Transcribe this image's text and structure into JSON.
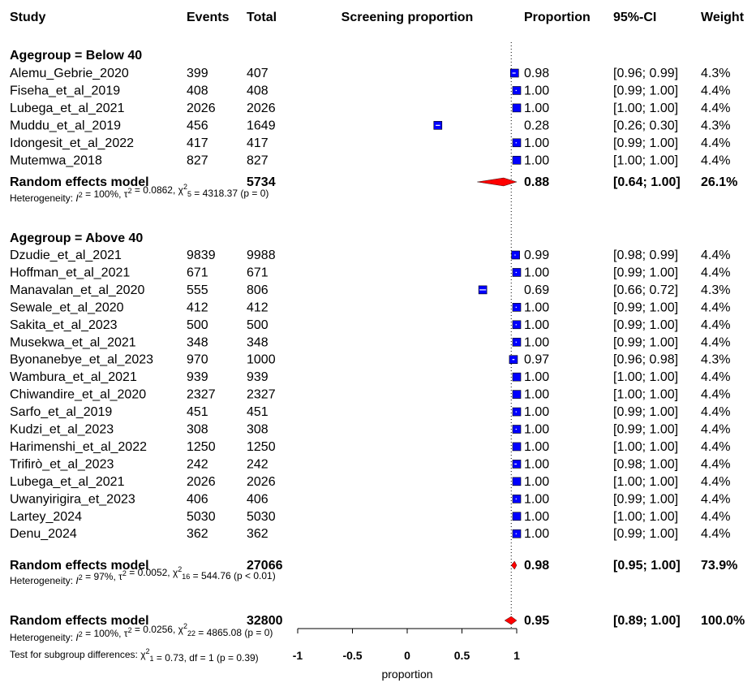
{
  "chart_data": {
    "type": "forest",
    "headers": {
      "study": "Study",
      "events": "Events",
      "total": "Total",
      "plot": "Screening proportion",
      "proportion": "Proportion",
      "ci": "95%-CI",
      "weight": "Weight"
    },
    "groups": [
      {
        "title": "Agegroup = Below 40",
        "studies": [
          {
            "name": "Alemu_Gebrie_2020",
            "events": "399",
            "total": "407",
            "prop": "0.98",
            "ci": "[0.96; 0.99]",
            "weight": "4.3%",
            "est": 0.98,
            "lo": 0.96,
            "hi": 0.99
          },
          {
            "name": "Fiseha_et_al_2019",
            "events": "408",
            "total": "408",
            "prop": "1.00",
            "ci": "[0.99; 1.00]",
            "weight": "4.4%",
            "est": 1.0,
            "lo": 0.99,
            "hi": 1.0
          },
          {
            "name": "Lubega_et_al_2021",
            "events": "2026",
            "total": "2026",
            "prop": "1.00",
            "ci": "[1.00; 1.00]",
            "weight": "4.4%",
            "est": 1.0,
            "lo": 1.0,
            "hi": 1.0
          },
          {
            "name": "Muddu_et_al_2019",
            "events": "456",
            "total": "1649",
            "prop": "0.28",
            "ci": "[0.26; 0.30]",
            "weight": "4.3%",
            "est": 0.28,
            "lo": 0.26,
            "hi": 0.3
          },
          {
            "name": "Idongesit_et_al_2022",
            "events": "417",
            "total": "417",
            "prop": "1.00",
            "ci": "[0.99; 1.00]",
            "weight": "4.4%",
            "est": 1.0,
            "lo": 0.99,
            "hi": 1.0
          },
          {
            "name": "Mutemwa_2018",
            "events": "827",
            "total": "827",
            "prop": "1.00",
            "ci": "[1.00; 1.00]",
            "weight": "4.4%",
            "est": 1.0,
            "lo": 1.0,
            "hi": 1.0
          }
        ],
        "summary": {
          "label": "Random effects model",
          "total": "5734",
          "prop": "0.88",
          "ci": "[0.64; 1.00]",
          "weight": "26.1%",
          "est": 0.88,
          "lo": 0.64,
          "hi": 1.0
        },
        "het": {
          "i2": "100%",
          "tau2": "0.0862",
          "df": "5",
          "chi2": "4318.37",
          "p": "(p = 0)"
        }
      },
      {
        "title": "Agegroup = Above 40",
        "studies": [
          {
            "name": "Dzudie_et_al_2021",
            "events": "9839",
            "total": "9988",
            "prop": "0.99",
            "ci": "[0.98; 0.99]",
            "weight": "4.4%",
            "est": 0.99,
            "lo": 0.98,
            "hi": 0.99
          },
          {
            "name": "Hoffman_et_al_2021",
            "events": "671",
            "total": "671",
            "prop": "1.00",
            "ci": "[0.99; 1.00]",
            "weight": "4.4%",
            "est": 1.0,
            "lo": 0.99,
            "hi": 1.0
          },
          {
            "name": "Manavalan_et_al_2020",
            "events": "555",
            "total": "806",
            "prop": "0.69",
            "ci": "[0.66; 0.72]",
            "weight": "4.3%",
            "est": 0.69,
            "lo": 0.66,
            "hi": 0.72
          },
          {
            "name": "Sewale_et_al_2020",
            "events": "412",
            "total": "412",
            "prop": "1.00",
            "ci": "[0.99; 1.00]",
            "weight": "4.4%",
            "est": 1.0,
            "lo": 0.99,
            "hi": 1.0
          },
          {
            "name": "Sakita_et_al_2023",
            "events": "500",
            "total": "500",
            "prop": "1.00",
            "ci": "[0.99; 1.00]",
            "weight": "4.4%",
            "est": 1.0,
            "lo": 0.99,
            "hi": 1.0
          },
          {
            "name": "Musekwa_et_al_2021",
            "events": "348",
            "total": "348",
            "prop": "1.00",
            "ci": "[0.99; 1.00]",
            "weight": "4.4%",
            "est": 1.0,
            "lo": 0.99,
            "hi": 1.0
          },
          {
            "name": "Byonanebye_et_al_2023",
            "events": "970",
            "total": "1000",
            "prop": "0.97",
            "ci": "[0.96; 0.98]",
            "weight": "4.3%",
            "est": 0.97,
            "lo": 0.96,
            "hi": 0.98
          },
          {
            "name": "Wambura_et_al_2021",
            "events": "939",
            "total": "939",
            "prop": "1.00",
            "ci": "[1.00; 1.00]",
            "weight": "4.4%",
            "est": 1.0,
            "lo": 1.0,
            "hi": 1.0
          },
          {
            "name": "Chiwandire_et_al_2020",
            "events": "2327",
            "total": "2327",
            "prop": "1.00",
            "ci": "[1.00; 1.00]",
            "weight": "4.4%",
            "est": 1.0,
            "lo": 1.0,
            "hi": 1.0
          },
          {
            "name": "Sarfo_et_al_2019",
            "events": "451",
            "total": "451",
            "prop": "1.00",
            "ci": "[0.99; 1.00]",
            "weight": "4.4%",
            "est": 1.0,
            "lo": 0.99,
            "hi": 1.0
          },
          {
            "name": "Kudzi_et_al_2023",
            "events": "308",
            "total": "308",
            "prop": "1.00",
            "ci": "[0.99; 1.00]",
            "weight": "4.4%",
            "est": 1.0,
            "lo": 0.99,
            "hi": 1.0
          },
          {
            "name": "Harimenshi_et_al_2022",
            "events": "1250",
            "total": "1250",
            "prop": "1.00",
            "ci": "[1.00; 1.00]",
            "weight": "4.4%",
            "est": 1.0,
            "lo": 1.0,
            "hi": 1.0
          },
          {
            "name": "Trifirò_et_al_2023",
            "events": "242",
            "total": "242",
            "prop": "1.00",
            "ci": "[0.98; 1.00]",
            "weight": "4.4%",
            "est": 1.0,
            "lo": 0.98,
            "hi": 1.0
          },
          {
            "name": "Lubega_et_al_2021",
            "events": "2026",
            "total": "2026",
            "prop": "1.00",
            "ci": "[1.00; 1.00]",
            "weight": "4.4%",
            "est": 1.0,
            "lo": 1.0,
            "hi": 1.0
          },
          {
            "name": "Uwanyirigira_et_2023",
            "events": "406",
            "total": "406",
            "prop": "1.00",
            "ci": "[0.99; 1.00]",
            "weight": "4.4%",
            "est": 1.0,
            "lo": 0.99,
            "hi": 1.0
          },
          {
            "name": "Lartey_2024",
            "events": "5030",
            "total": "5030",
            "prop": "1.00",
            "ci": "[1.00; 1.00]",
            "weight": "4.4%",
            "est": 1.0,
            "lo": 1.0,
            "hi": 1.0
          },
          {
            "name": "Denu_2024",
            "events": "362",
            "total": "362",
            "prop": "1.00",
            "ci": "[0.99; 1.00]",
            "weight": "4.4%",
            "est": 1.0,
            "lo": 0.99,
            "hi": 1.0
          }
        ],
        "summary": {
          "label": "Random effects model",
          "total": "27066",
          "prop": "0.98",
          "ci": "[0.95; 1.00]",
          "weight": "73.9%",
          "est": 0.98,
          "lo": 0.95,
          "hi": 1.0
        },
        "het": {
          "i2": "97%",
          "tau2": "0.0052",
          "df": "16",
          "chi2": "544.76",
          "p": "(p < 0.01)"
        }
      }
    ],
    "overall": {
      "label": "Random effects model",
      "total": "32800",
      "prop": "0.95",
      "ci": "[0.89; 1.00]",
      "weight": "100.0%",
      "est": 0.95,
      "lo": 0.89,
      "hi": 1.0
    },
    "overall_het": {
      "i2": "100%",
      "tau2": "0.0256",
      "df": "22",
      "chi2": "4865.08",
      "p": "(p = 0)"
    },
    "subgroup_test": {
      "prefix": "Test for subgroup differences: ",
      "chi2": "0.73",
      "df_label": "df = 1",
      "chi_df": "1",
      "p": "(p = 0.39)"
    },
    "x_axis": {
      "label": "proportion",
      "ticks": [
        "-1",
        "-0.5",
        "0",
        "0.5",
        "1"
      ],
      "tick_values": [
        -1,
        -0.5,
        0,
        0.5,
        1
      ],
      "range": [
        -1,
        1
      ]
    },
    "colors": {
      "square": "#0000ff",
      "diamond": "#ff0000",
      "text": "#000000"
    }
  }
}
